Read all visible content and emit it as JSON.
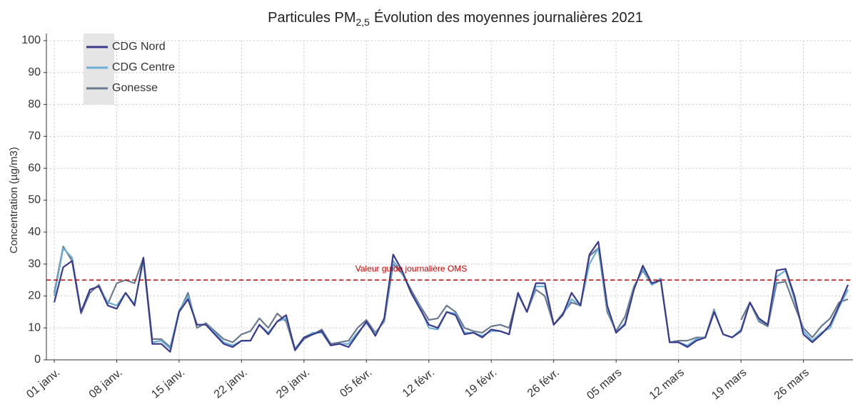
{
  "chart_data": {
    "type": "line",
    "title": [
      "Particules PM",
      "2,5",
      "Évolution des moyennes journalières 2021"
    ],
    "ylabel": "Concentration (µg/m3)",
    "categories": [
      "01 janv.",
      null,
      null,
      null,
      null,
      null,
      null,
      "08 janv.",
      null,
      null,
      null,
      null,
      null,
      null,
      "15 janv.",
      null,
      null,
      null,
      null,
      null,
      null,
      "22 janv.",
      null,
      null,
      null,
      null,
      null,
      null,
      "29 janv.",
      null,
      null,
      null,
      null,
      null,
      null,
      "05 févr.",
      null,
      null,
      null,
      null,
      null,
      null,
      "12 févr.",
      null,
      null,
      null,
      null,
      null,
      null,
      "19 févr.",
      null,
      null,
      null,
      null,
      null,
      null,
      "26 févr.",
      null,
      null,
      null,
      null,
      null,
      null,
      "05 mars",
      null,
      null,
      null,
      null,
      null,
      null,
      "12 mars",
      null,
      null,
      null,
      null,
      null,
      null,
      "19 mars",
      null,
      null,
      null,
      null,
      null,
      null,
      "26 mars",
      null,
      null,
      null,
      null,
      null
    ],
    "series": [
      {
        "name": "CDG Nord",
        "color": "#3b3a8c",
        "values": [
          18,
          29,
          31,
          15,
          22,
          23,
          17,
          16,
          21,
          17,
          32,
          5,
          5,
          2.5,
          15,
          19,
          11,
          11,
          8,
          5,
          4,
          6,
          6,
          11,
          8,
          12,
          14,
          3,
          7,
          8,
          9,
          4.5,
          5,
          4,
          8,
          12,
          7.5,
          13,
          33,
          28,
          21,
          16,
          11,
          10,
          15,
          14,
          8,
          8.5,
          7,
          9.5,
          9,
          8,
          21,
          15,
          24,
          24,
          11,
          14,
          21,
          17,
          33,
          37,
          17,
          8.5,
          11,
          22,
          29.5,
          24,
          25,
          5.5,
          5.5,
          4,
          6,
          7,
          15,
          8,
          7,
          9,
          18,
          13,
          11,
          28,
          28.5,
          20,
          8,
          5.5,
          8,
          11,
          17,
          23.5
        ]
      },
      {
        "name": "CDG Centre",
        "color": "#6aaed6",
        "values": [
          20,
          35,
          32,
          15,
          22,
          23,
          18,
          17,
          21,
          17.5,
          31,
          5.5,
          6,
          3.5,
          15.5,
          20,
          11,
          11,
          8.5,
          5.5,
          4.5,
          6,
          6,
          11,
          8.5,
          12,
          13,
          3.5,
          7,
          8.5,
          8.5,
          4.5,
          5,
          5,
          8.5,
          11.5,
          8,
          12.5,
          31,
          27.5,
          21,
          16.5,
          10,
          9.5,
          15,
          14.5,
          8.5,
          8.5,
          7.5,
          9,
          9,
          8,
          20.5,
          15,
          23,
          23,
          11,
          14,
          19,
          17,
          30,
          35,
          16,
          8.5,
          11.5,
          22.5,
          28.5,
          23.5,
          25.5,
          5.5,
          5.5,
          4.5,
          6.5,
          7,
          15.5,
          8,
          7,
          9.5,
          18,
          12.5,
          11,
          26,
          28,
          19,
          9,
          6,
          8.5,
          10,
          16.5,
          22
        ]
      },
      {
        "name": "Gonesse",
        "color": "#6b7a8f",
        "values": [
          21,
          35.5,
          31,
          14.5,
          21,
          23.5,
          17.5,
          24,
          25,
          24,
          32,
          6.5,
          6.5,
          4,
          15,
          21,
          10,
          11.5,
          9,
          6.5,
          5.5,
          8,
          9,
          13,
          10,
          14.5,
          12,
          3,
          6.5,
          8,
          9.5,
          5,
          5.5,
          6,
          10,
          12.5,
          8.5,
          12,
          30,
          27,
          22,
          17,
          12.5,
          13,
          17,
          15,
          10,
          9,
          8.5,
          10.5,
          11,
          10,
          20.5,
          15,
          22,
          20,
          11,
          14.5,
          18,
          17,
          32.5,
          35,
          15,
          9,
          13.5,
          23,
          28,
          23.5,
          25,
          5.5,
          6,
          6,
          7,
          7,
          16,
          null,
          null,
          12.5,
          18,
          12,
          10.5,
          24,
          24.5,
          17,
          10,
          7,
          10.5,
          13,
          18,
          19
        ]
      }
    ],
    "reference": {
      "value": 25,
      "label": "Valeur guide journalière OMS",
      "color": "#c00000"
    },
    "ylim": [
      0,
      100
    ],
    "yticks": [
      0,
      10,
      20,
      30,
      40,
      50,
      60,
      70,
      80,
      90,
      100
    ],
    "grid": true,
    "legend": "upper left"
  }
}
